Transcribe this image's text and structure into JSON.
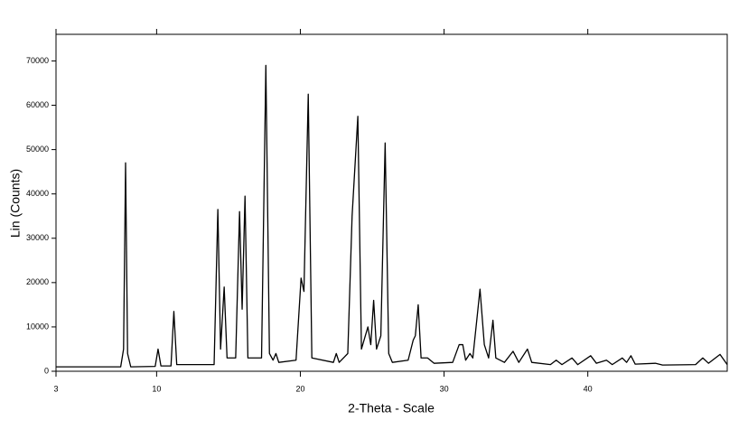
{
  "chart_data": {
    "type": "line",
    "x_label": "2-Theta - Scale",
    "y_label": "Lin (Counts)",
    "color": "#000000",
    "xlim": [
      3,
      49.7
    ],
    "xticks": [
      3,
      10,
      20,
      30,
      40
    ],
    "ylim": [
      0,
      76000
    ],
    "yticks": [
      0,
      10000,
      20000,
      30000,
      40000,
      50000,
      60000,
      70000
    ],
    "x": [
      3,
      7.5,
      7.7,
      7.84,
      7.98,
      8.2,
      9.9,
      10.1,
      10.3,
      11.0,
      11.2,
      11.4,
      14.0,
      14.26,
      14.45,
      14.7,
      14.9,
      15.5,
      15.77,
      15.95,
      16.15,
      16.35,
      17.3,
      17.6,
      17.85,
      18.1,
      18.3,
      18.5,
      19.7,
      20.05,
      20.25,
      20.55,
      20.8,
      22.3,
      22.5,
      22.7,
      23.3,
      23.6,
      24.0,
      24.25,
      24.7,
      24.9,
      25.1,
      25.3,
      25.6,
      25.9,
      26.15,
      26.4,
      27.5,
      27.85,
      28.0,
      28.2,
      28.4,
      28.85,
      29.3,
      30.6,
      31.05,
      31.3,
      31.5,
      31.8,
      32.0,
      32.5,
      32.8,
      33.1,
      33.4,
      33.6,
      34.2,
      34.8,
      35.2,
      35.8,
      36.1,
      37.4,
      37.8,
      38.2,
      38.9,
      39.3,
      40.2,
      40.6,
      41.3,
      41.7,
      42.4,
      42.7,
      43.0,
      43.3,
      44.7,
      45.2,
      47.5,
      48.0,
      48.4,
      49.2,
      49.7
    ],
    "values": [
      1000,
      1000,
      5000,
      47000,
      4000,
      1000,
      1100,
      5000,
      1200,
      1200,
      13500,
      1500,
      1500,
      36500,
      5000,
      19000,
      3000,
      3000,
      36000,
      14000,
      39500,
      3000,
      3000,
      69000,
      4000,
      2500,
      4000,
      2000,
      2500,
      21000,
      18000,
      62500,
      3000,
      2000,
      4000,
      2000,
      4000,
      35000,
      57500,
      5000,
      10000,
      6000,
      16000,
      5000,
      8000,
      51500,
      4000,
      2000,
      2500,
      7000,
      8000,
      15000,
      3000,
      3000,
      1800,
      2000,
      6000,
      6000,
      2500,
      4000,
      3000,
      18500,
      6000,
      3000,
      11500,
      3000,
      2000,
      4500,
      2000,
      5000,
      2000,
      1500,
      2500,
      1500,
      3000,
      1500,
      3500,
      1800,
      2500,
      1500,
      3000,
      2000,
      3500,
      1600,
      1800,
      1400,
      1500,
      3000,
      1800,
      3800,
      1500
    ]
  }
}
